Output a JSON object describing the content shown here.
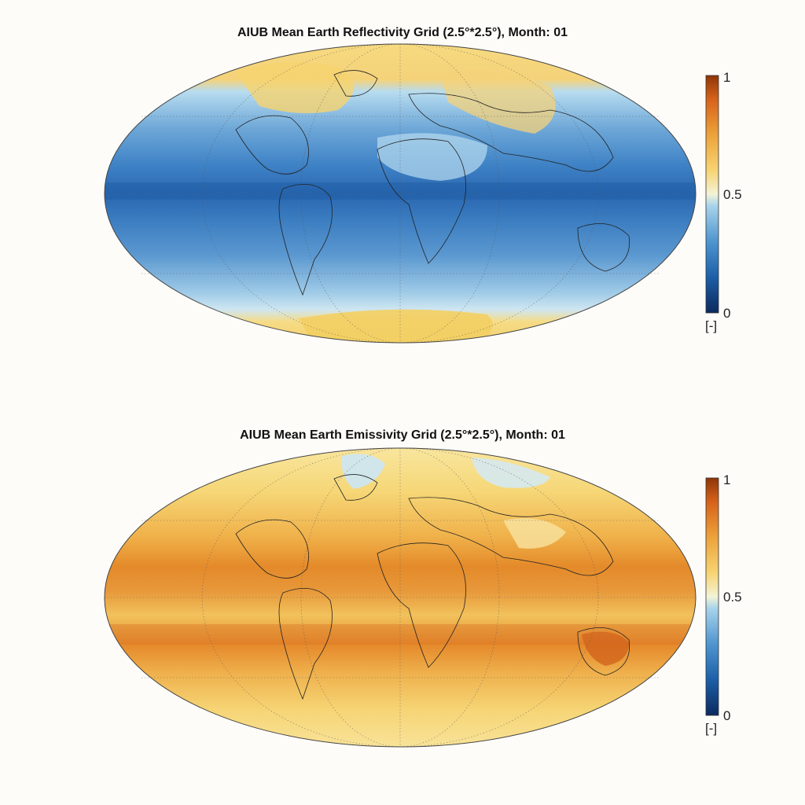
{
  "maps": [
    {
      "title": "AIUB Mean Earth Reflectivity Grid (2.5°*2.5°), Month: 01",
      "variable": "reflectivity",
      "colorbar": {
        "ticks": [
          "0",
          "0.5",
          "1"
        ],
        "unit": "[-]"
      }
    },
    {
      "title": "AIUB Mean Earth Emissivity Grid (2.5°*2.5°), Month: 01",
      "variable": "emissivity",
      "colorbar": {
        "ticks": [
          "0",
          "0.5",
          "1"
        ],
        "unit": "[-]"
      }
    }
  ],
  "colormap": [
    "#0b2a5e",
    "#1c5fa8",
    "#4f95d0",
    "#a7d3ea",
    "#f3f3d6",
    "#f7d472",
    "#eda23a",
    "#d6621a",
    "#8f3508"
  ]
}
